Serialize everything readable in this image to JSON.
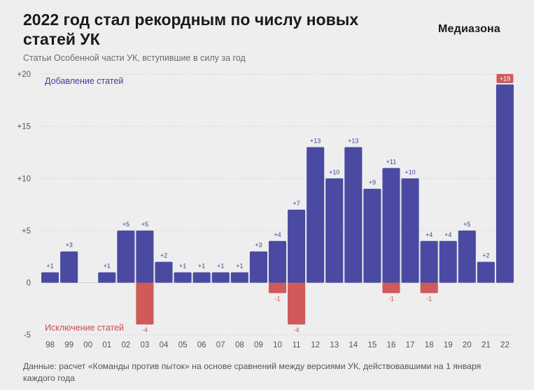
{
  "title": "2022 год стал рекордным по числу новых статей УК",
  "logo": "Медиазона",
  "subtitle": "Статьи Особенной части УК, вступившие в силу за год",
  "source": "Данные: расчет «Команды против пыток» на основе сравнений между версиями УК, действовавшими на 1 января каждого года",
  "colors": {
    "added": "#4a4aa3",
    "removed": "#d05a5a",
    "added_label": "#3f3f9c",
    "removed_label": "#cc4c4c",
    "background": "#eeeeee",
    "grid": "#cccccc",
    "tick_text": "#555555"
  },
  "chart_data": {
    "type": "bar",
    "categories": [
      "98",
      "99",
      "00",
      "01",
      "02",
      "03",
      "04",
      "05",
      "06",
      "07",
      "08",
      "09",
      "10",
      "11",
      "12",
      "13",
      "14",
      "15",
      "16",
      "17",
      "18",
      "19",
      "20",
      "21",
      "22"
    ],
    "series": [
      {
        "name": "Добавление статей",
        "values": [
          1,
          3,
          0,
          1,
          5,
          5,
          2,
          1,
          1,
          1,
          1,
          3,
          4,
          7,
          13,
          10,
          13,
          9,
          11,
          10,
          4,
          4,
          5,
          2,
          19
        ],
        "labels": [
          "+1",
          "+3",
          "",
          "+1",
          "+5",
          "+5",
          "+2",
          "+1",
          "+1",
          "+1",
          "+1",
          "+3",
          "+4",
          "+7",
          "+13",
          "+10",
          "+13",
          "+9",
          "+11",
          "+10",
          "+4",
          "+4",
          "+5",
          "+2",
          "+19"
        ]
      },
      {
        "name": "Исключение статей",
        "values": [
          0,
          0,
          0,
          0,
          0,
          -4,
          0,
          0,
          0,
          0,
          0,
          0,
          -1,
          -4,
          0,
          0,
          0,
          0,
          -1,
          0,
          -1,
          0,
          0,
          0,
          0
        ],
        "labels": [
          "",
          "",
          "",
          "",
          "",
          "-4",
          "",
          "",
          "",
          "",
          "",
          "",
          "-1",
          "-4",
          "",
          "",
          "",
          "",
          "-1",
          "",
          "-1",
          "",
          "",
          "",
          ""
        ]
      }
    ],
    "yticks": [
      "+20",
      "+15",
      "+10",
      "+5",
      "0",
      "-5"
    ],
    "ytick_values": [
      20,
      15,
      10,
      5,
      0,
      -5
    ],
    "ylim": [
      -5,
      20
    ],
    "grid": true,
    "highlight_last_label": true
  }
}
